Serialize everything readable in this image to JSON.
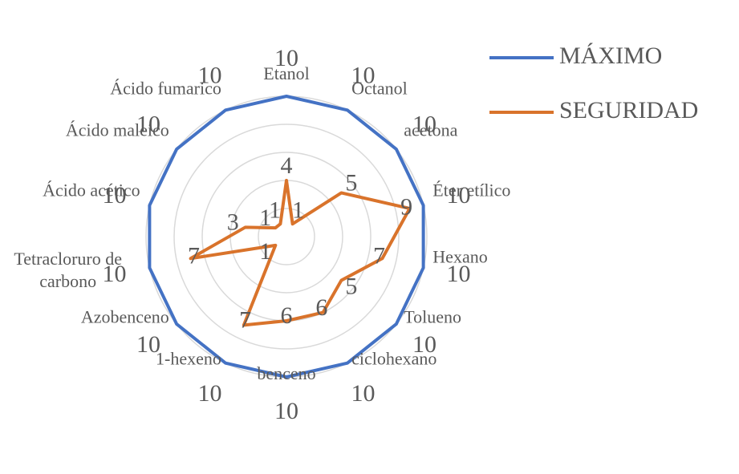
{
  "chart_data": {
    "type": "radar",
    "categories": [
      "Etanol",
      "Octanol",
      "acetona",
      "Éter etílico",
      "Hexano",
      "Tolueno",
      "ciclohexano",
      "benceno",
      "1-hexeno",
      "Azobenceno",
      "Tetracloruro de carbono",
      "Ácido acético",
      "Ácido maleico",
      "Ácido fumarico"
    ],
    "series": [
      {
        "name": "MÁXIMO",
        "color": "#4472c4",
        "values": [
          10,
          10,
          10,
          10,
          10,
          10,
          10,
          10,
          10,
          10,
          10,
          10,
          10,
          10
        ]
      },
      {
        "name": "SEGURIDAD",
        "color": "#d9732b",
        "values": [
          4,
          1,
          5,
          9,
          7,
          5,
          6,
          6,
          7,
          1,
          7,
          3,
          1,
          1
        ]
      }
    ],
    "rlim": [
      0,
      10
    ],
    "rticks": [
      2,
      4,
      6,
      8,
      10
    ],
    "grid": true,
    "legend": "right"
  }
}
